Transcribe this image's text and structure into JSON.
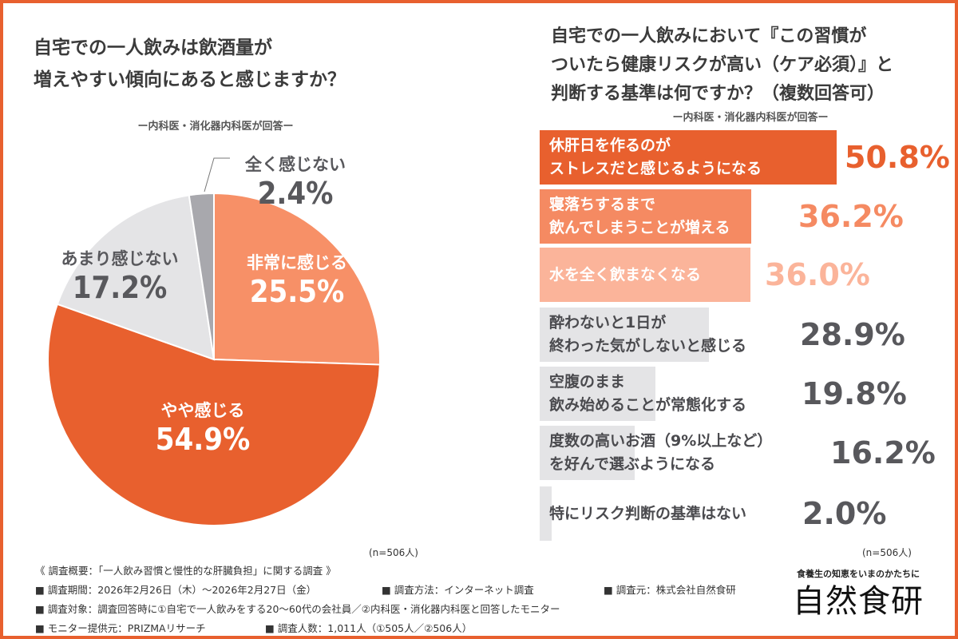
{
  "chart_data": [
    {
      "type": "pie",
      "title": "自宅での一人飲みは飲酒量が増えやすい傾向にあると感じますか？",
      "subtitle": "ー内科医・消化器内科医が回答ー",
      "note": "(n=506人)",
      "slices": [
        {
          "label": "非常に感じる",
          "value": 25.5,
          "display": "25.5%",
          "color": "#F79067",
          "text_color": "#ffffff"
        },
        {
          "label": "やや感じる",
          "value": 54.9,
          "display": "54.9%",
          "color": "#E8602E",
          "text_color": "#ffffff"
        },
        {
          "label": "あまり感じない",
          "value": 17.2,
          "display": "17.2%",
          "color": "#E4E4E6",
          "text_color": "#58585c"
        },
        {
          "label": "全く感じない",
          "value": 2.4,
          "display": "2.4%",
          "color": "#A8A8AD",
          "text_color": "#58585c"
        }
      ]
    },
    {
      "type": "bar",
      "orientation": "horizontal",
      "title": "自宅での一人飲みにおいて『この習慣がついたら健康リスクが高い（ケア必須）』と判断する基準は何ですか？（複数回答可）",
      "subtitle": "ー内科医・消化器内科医が回答ー",
      "note": "(n=506人)",
      "bars": [
        {
          "label": [
            "休肝日を作るのが",
            "ストレスだと感じるようになる"
          ],
          "value": 50.8,
          "display": "50.8%",
          "color": "#E8602E",
          "value_color": "#E8602E",
          "label_color": "#ffffff"
        },
        {
          "label": [
            "寝落ちするまで",
            "飲んでしまうことが増える"
          ],
          "value": 36.2,
          "display": "36.2%",
          "color": "#F58A62",
          "value_color": "#F58A62",
          "label_color": "#ffffff"
        },
        {
          "label": [
            "水を全く飲まなくなる"
          ],
          "value": 36.0,
          "display": "36.0%",
          "color": "#FBB49A",
          "value_color": "#FBB49A",
          "label_color": "#ffffff"
        },
        {
          "label": [
            "酔わないと1日が",
            "終わった気がしないと感じる"
          ],
          "value": 28.9,
          "display": "28.9%",
          "color": "#E4E4E6",
          "value_color": "#58585c",
          "label_color": "#4a4a4e"
        },
        {
          "label": [
            "空腹のまま",
            "飲み始めることが常態化する"
          ],
          "value": 19.8,
          "display": "19.8%",
          "color": "#E4E4E6",
          "value_color": "#58585c",
          "label_color": "#4a4a4e"
        },
        {
          "label": [
            "度数の高いお酒（9%以上など）",
            "を好んで選ぶようになる"
          ],
          "value": 16.2,
          "display": "16.2%",
          "color": "#E4E4E6",
          "value_color": "#58585c",
          "label_color": "#4a4a4e"
        },
        {
          "label": [
            "特にリスク判断の基準はない"
          ],
          "value": 2.0,
          "display": "2.0%",
          "color": "#E4E4E6",
          "value_color": "#58585c",
          "label_color": "#4a4a4e"
        }
      ]
    }
  ],
  "left_title": [
    "自宅での一人飲みは飲酒量が",
    "増えやすい傾向にあると感じますか？"
  ],
  "right_title": [
    "自宅での一人飲みにおいて『この習慣が",
    "ついたら健康リスクが高い（ケア必須）』と",
    "判断する基準は何ですか？（複数回答可）"
  ],
  "footer": {
    "overview": "《 調査概要：「一人飲み習慣と慢性的な肝臓負担」に関する調査 》",
    "lines": [
      [
        "■ 調査期間：2026年2月26日（木）～2026年2月27日（金）",
        "■ 調査方法：インターネット調査",
        "■ 調査元：株式会社自然食研"
      ],
      [
        "■ 調査対象：調査回答時に①自宅で一人飲みをする20～60代の会社員／②内科医・消化器内科医と回答したモニター"
      ],
      [
        "■ モニター提供元：PRIZMAリサーチ",
        "■ 調査人数：1,011人（①505人／②506人）"
      ]
    ]
  },
  "logo": {
    "tagline": "食養生の知恵をいまのかたちに",
    "name": "自然食研"
  },
  "colors": {
    "border": "#E8602E"
  }
}
